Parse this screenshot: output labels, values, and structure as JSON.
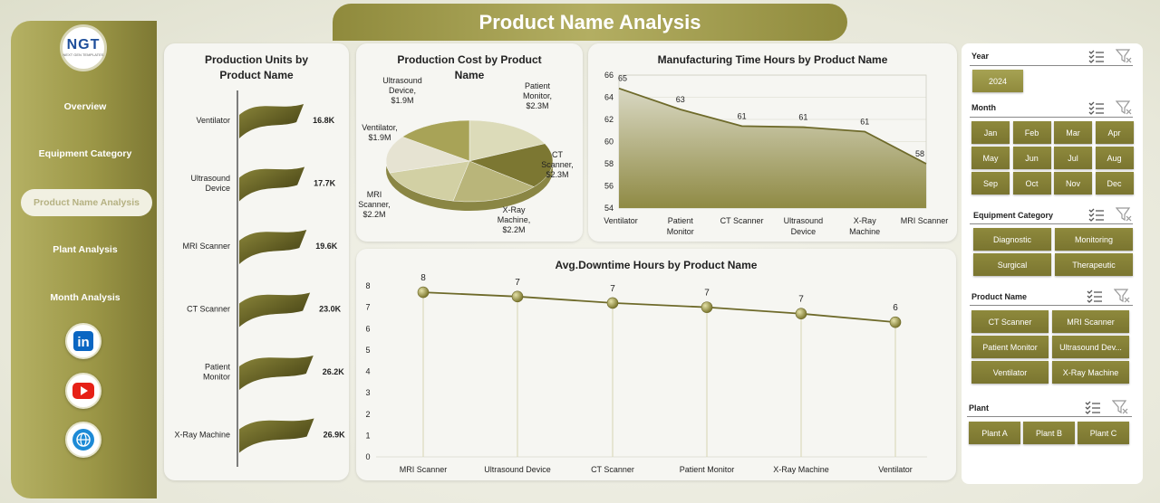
{
  "header": {
    "title": "Product Name Analysis"
  },
  "logo": {
    "text": "NGT",
    "subtitle": "NEXT GEN TEMPLATES"
  },
  "sidebar": {
    "items": [
      {
        "label": "Overview",
        "active": false
      },
      {
        "label": "Equipment Category",
        "active": false
      },
      {
        "label": "Product Name Analysis",
        "active": true
      },
      {
        "label": "Plant Analysis",
        "active": false
      },
      {
        "label": "Month Analysis",
        "active": false
      }
    ],
    "social": [
      {
        "icon": "linkedin-icon",
        "label": "in",
        "color": "#0a66c2"
      },
      {
        "icon": "youtube-icon",
        "label": "▶",
        "color": "#e62117"
      },
      {
        "icon": "globe-icon",
        "label": "◍",
        "color": "#1d8ad6"
      }
    ]
  },
  "accent": "#8f8a3c",
  "chart_data": [
    {
      "id": "production-units",
      "type": "bar",
      "title": "Production Units by Product Name",
      "categories": [
        "Ventilator",
        "Ultrasound Device",
        "MRI Scanner",
        "CT Scanner",
        "Patient Monitor",
        "X-Ray Machine"
      ],
      "values": [
        16800,
        17700,
        19600,
        23000,
        26200,
        26900
      ],
      "data_labels": [
        "16.8K",
        "17.7K",
        "19.6K",
        "23.0K",
        "26.2K",
        "26.9K"
      ]
    },
    {
      "id": "production-cost",
      "type": "pie",
      "title": "Production Cost by Product Name",
      "categories": [
        "Patient Monitor",
        "CT Scanner",
        "X-Ray Machine",
        "MRI Scanner",
        "Ventilator",
        "Ultrasound Device"
      ],
      "values": [
        2.3,
        2.3,
        2.2,
        2.2,
        1.9,
        1.9
      ],
      "data_labels": [
        "Patient Monitor, $2.3M",
        "CT Scanner, $2.3M",
        "X-Ray Machine, $2.2M",
        "MRI Scanner, $2.2M",
        "Ventilator, $1.9M",
        "Ultrasound Device, $1.9M"
      ]
    },
    {
      "id": "manufacturing-time",
      "type": "area",
      "title": "Manufacturing Time Hours by Product Name",
      "categories": [
        "Ventilator",
        "Patient Monitor",
        "CT Scanner",
        "Ultrasound Device",
        "X-Ray Machine",
        "MRI Scanner"
      ],
      "values": [
        64.8,
        62.9,
        61.4,
        61.3,
        60.9,
        58.0
      ],
      "data_labels": [
        "65",
        "63",
        "61",
        "61",
        "61",
        "58"
      ],
      "ylim": [
        54,
        66
      ],
      "yticks": [
        "54",
        "56",
        "58",
        "60",
        "62",
        "64",
        "66"
      ]
    },
    {
      "id": "avg-downtime",
      "type": "line",
      "title": "Avg.Downtime Hours by Product Name",
      "categories": [
        "MRI Scanner",
        "Ultrasound Device",
        "CT Scanner",
        "Patient Monitor",
        "X-Ray Machine",
        "Ventilator"
      ],
      "values": [
        7.7,
        7.5,
        7.2,
        7.0,
        6.7,
        6.3
      ],
      "data_labels": [
        "8",
        "7",
        "7",
        "7",
        "7",
        "6"
      ],
      "ylim": [
        0,
        8
      ],
      "yticks": [
        "0",
        "1",
        "2",
        "3",
        "4",
        "5",
        "6",
        "7",
        "8"
      ]
    }
  ],
  "slicers": {
    "year": {
      "title": "Year",
      "items": [
        {
          "label": "2024",
          "selected": true
        }
      ]
    },
    "month": {
      "title": "Month",
      "items": [
        "Jan",
        "Feb",
        "Mar",
        "Apr",
        "May",
        "Jun",
        "Jul",
        "Aug",
        "Sep",
        "Oct",
        "Nov",
        "Dec"
      ]
    },
    "category": {
      "title": "Equipment Category",
      "items": [
        "Diagnostic",
        "Monitoring",
        "Surgical",
        "Therapeutic"
      ]
    },
    "product": {
      "title": "Product Name",
      "items": [
        "CT Scanner",
        "MRI Scanner",
        "Patient Monitor",
        "Ultrasound Dev...",
        "Ventilator",
        "X-Ray Machine"
      ]
    },
    "plant": {
      "title": "Plant",
      "items": [
        "Plant A",
        "Plant B",
        "Plant C"
      ]
    }
  }
}
